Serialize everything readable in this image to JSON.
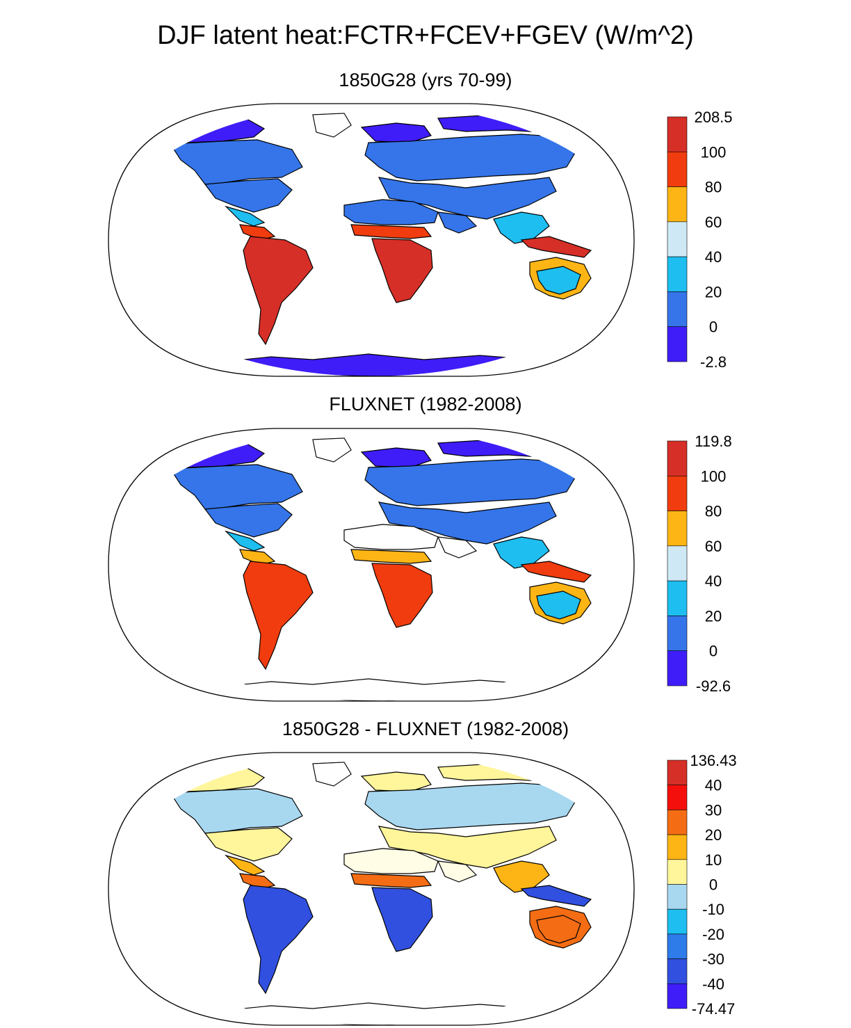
{
  "figure": {
    "title": "DJF latent heat:FCTR+FCEV+FGEV (W/m^2)"
  },
  "panels": [
    {
      "title": "1850G28 (yrs 70-99)",
      "colorbar": {
        "labels": [
          "208.5",
          "100",
          "80",
          "60",
          "40",
          "20",
          "0",
          "-2.8"
        ],
        "colors": [
          "#d62f27",
          "#f03c0e",
          "#fdb515",
          "#cfe8f5",
          "#1ebef0",
          "#3575e9",
          "#3f1df8"
        ]
      },
      "land_palette": {
        "polar": "#3f1df8",
        "boreal": "#3575e9",
        "midlat": "#3575e9",
        "desert": "#3575e9",
        "subtrop": "#1ebef0",
        "tropic": "#d62f27",
        "tropic_edge": "#f03c0e",
        "savanna": "#fdb515",
        "australia": "#1ebef0",
        "antarctica": "#3f1df8"
      }
    },
    {
      "title": "FLUXNET (1982-2008)",
      "colorbar": {
        "labels": [
          "119.8",
          "100",
          "80",
          "60",
          "40",
          "20",
          "0",
          "-92.6"
        ],
        "colors": [
          "#d62f27",
          "#f03c0e",
          "#fdb515",
          "#cfe8f5",
          "#1ebef0",
          "#3575e9",
          "#3f1df8"
        ]
      },
      "land_palette": {
        "polar": "#3f1df8",
        "boreal": "#3575e9",
        "midlat": "#3575e9",
        "desert": "#ffffff",
        "subtrop": "#1ebef0",
        "tropic": "#f03c0e",
        "tropic_edge": "#fdb515",
        "savanna": "#fdb515",
        "australia": "#1ebef0",
        "antarctica": "none"
      }
    },
    {
      "title": "1850G28 - FLUXNET (1982-2008)",
      "colorbar": {
        "labels": [
          "136.43",
          "40",
          "30",
          "20",
          "10",
          "0",
          "-10",
          "-20",
          "-30",
          "-40",
          "-74.47"
        ],
        "colors": [
          "#d62f27",
          "#f50f0c",
          "#f46d14",
          "#fdb515",
          "#fff59a",
          "#a8d8f0",
          "#1ebef0",
          "#2e7bea",
          "#3150e0",
          "#3f1df8"
        ]
      },
      "land_palette": {
        "polar": "#fff59a",
        "boreal": "#a8d8f0",
        "midlat": "#fff59a",
        "desert": "#fffde6",
        "subtrop": "#fdb515",
        "tropic": "#3150e0",
        "tropic_edge": "#f46d14",
        "savanna": "#f46d14",
        "australia": "#f46d14",
        "antarctica": "none"
      }
    }
  ]
}
